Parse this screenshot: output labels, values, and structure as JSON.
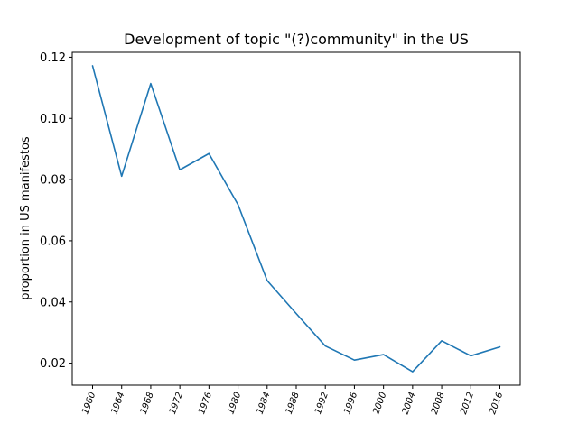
{
  "chart_data": {
    "type": "line",
    "title": "Development of topic \"(?)community\" in the US",
    "xlabel": "",
    "ylabel": "proportion in US manifestos",
    "x": [
      "1960",
      "1964",
      "1968",
      "1972",
      "1976",
      "1980",
      "1984",
      "1988",
      "1992",
      "1996",
      "2000",
      "2004",
      "2008",
      "2012",
      "2016"
    ],
    "series": [
      {
        "values": [
          0.1172,
          0.0811,
          0.1114,
          0.0832,
          0.0885,
          0.0718,
          0.047,
          0.0362,
          0.0256,
          0.021,
          0.0228,
          0.0172,
          0.0273,
          0.0224,
          0.0253
        ],
        "color": "#1f77b4"
      }
    ],
    "yticks": [
      "0.02",
      "0.04",
      "0.06",
      "0.08",
      "0.10",
      "0.12"
    ],
    "ylim": [
      0.0128,
      0.1216
    ],
    "grid": false,
    "legend": "none"
  }
}
